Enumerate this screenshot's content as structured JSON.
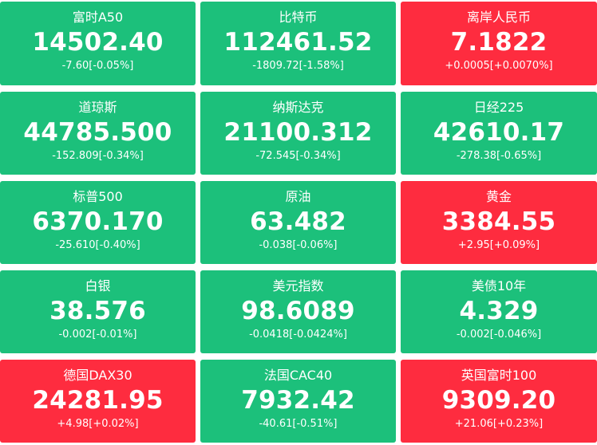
{
  "colors": {
    "up": "#fe2c3f",
    "down": "#1cc07b",
    "text": "#ffffff"
  },
  "tiles": [
    {
      "name": "富时A50",
      "price": "14502.40",
      "change": "-7.60[-0.05%]",
      "trend": "down"
    },
    {
      "name": "比特币",
      "price": "112461.52",
      "change": "-1809.72[-1.58%]",
      "trend": "down"
    },
    {
      "name": "离岸人民币",
      "price": "7.1822",
      "change": "+0.0005[+0.0070%]",
      "trend": "up"
    },
    {
      "name": "道琼斯",
      "price": "44785.500",
      "change": "-152.809[-0.34%]",
      "trend": "down"
    },
    {
      "name": "纳斯达克",
      "price": "21100.312",
      "change": "-72.545[-0.34%]",
      "trend": "down"
    },
    {
      "name": "日经225",
      "price": "42610.17",
      "change": "-278.38[-0.65%]",
      "trend": "down"
    },
    {
      "name": "标普500",
      "price": "6370.170",
      "change": "-25.610[-0.40%]",
      "trend": "down"
    },
    {
      "name": "原油",
      "price": "63.482",
      "change": "-0.038[-0.06%]",
      "trend": "down"
    },
    {
      "name": "黄金",
      "price": "3384.55",
      "change": "+2.95[+0.09%]",
      "trend": "up"
    },
    {
      "name": "白银",
      "price": "38.576",
      "change": "-0.002[-0.01%]",
      "trend": "down"
    },
    {
      "name": "美元指数",
      "price": "98.6089",
      "change": "-0.0418[-0.0424%]",
      "trend": "down"
    },
    {
      "name": "美债10年",
      "price": "4.329",
      "change": "-0.002[-0.046%]",
      "trend": "down"
    },
    {
      "name": "德国DAX30",
      "price": "24281.95",
      "change": "+4.98[+0.02%]",
      "trend": "up"
    },
    {
      "name": "法国CAC40",
      "price": "7932.42",
      "change": "-40.61[-0.51%]",
      "trend": "down"
    },
    {
      "name": "英国富时100",
      "price": "9309.20",
      "change": "+21.06[+0.23%]",
      "trend": "up"
    }
  ]
}
